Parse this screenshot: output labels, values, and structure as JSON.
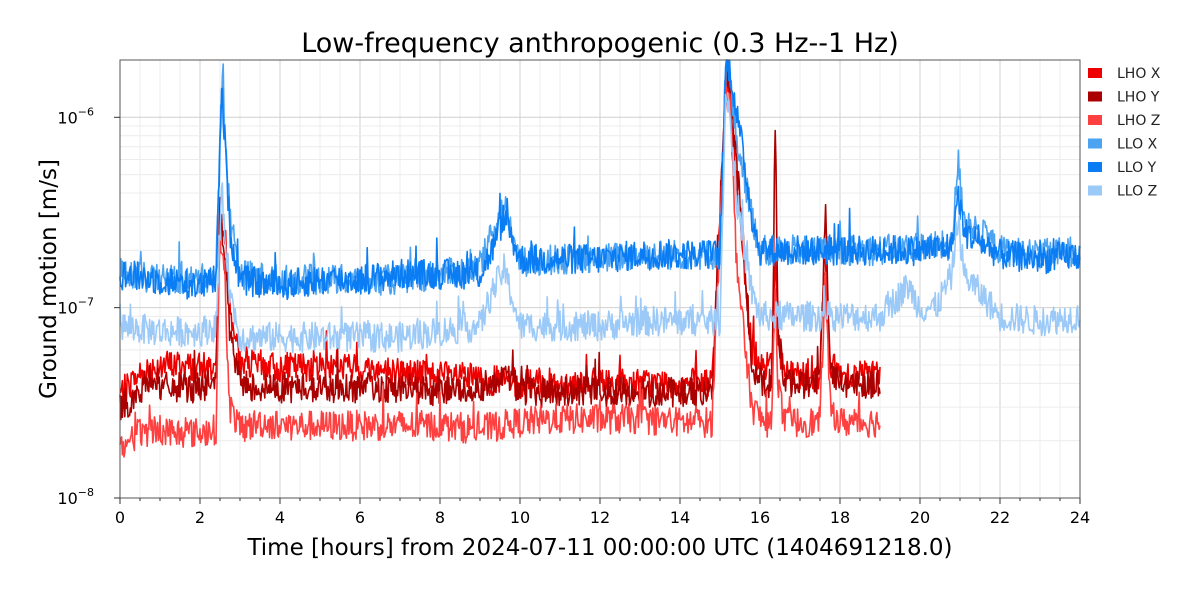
{
  "chart_data": {
    "type": "line",
    "title": "Low-frequency anthropogenic (0.3 Hz--1 Hz)",
    "xlabel": "Time [hours] from 2024-07-11 00:00:00 UTC (1404691218.0)",
    "ylabel": "Ground motion [m/s]",
    "xlim": [
      0,
      24
    ],
    "ylim": [
      1e-08,
      2e-06
    ],
    "yscale": "log",
    "grid": true,
    "legend_position": "outside-top-right",
    "x_ticks": [
      "0",
      "2",
      "4",
      "6",
      "8",
      "10",
      "12",
      "14",
      "16",
      "18",
      "20",
      "22",
      "24"
    ],
    "y_ticks": [
      {
        "base": "10",
        "exp": "−8",
        "value": 1e-08
      },
      {
        "base": "10",
        "exp": "−7",
        "value": 1e-07
      },
      {
        "base": "10",
        "exp": "−6",
        "value": 1e-06
      }
    ],
    "series": [
      {
        "name": "LHO X",
        "color": "#ee0000",
        "x": [
          0,
          0.5,
          1,
          1.5,
          2,
          2.4,
          2.5,
          2.6,
          2.75,
          3,
          3.5,
          4,
          5,
          6,
          7,
          8,
          9,
          10,
          11,
          12,
          13,
          14,
          14.8,
          15.15,
          15.25,
          15.4,
          15.6,
          15.8,
          16.1,
          16.3,
          16.38,
          16.45,
          16.6,
          17,
          17.5,
          17.63,
          17.75,
          18,
          18.5,
          19
        ],
        "y": [
          3.5e-08,
          4.5e-08,
          5e-08,
          5e-08,
          4.8e-08,
          5e-08,
          2.5e-07,
          3e-07,
          1e-07,
          5e-08,
          5e-08,
          4.8e-08,
          5e-08,
          4.8e-08,
          4.6e-08,
          4.4e-08,
          4.2e-08,
          4e-08,
          4e-08,
          4e-08,
          4e-08,
          4e-08,
          4e-08,
          1.5e-06,
          1.2e-06,
          5e-07,
          1.5e-07,
          6e-08,
          5e-08,
          5e-08,
          2e-07,
          7e-08,
          4.5e-08,
          4.5e-08,
          4.5e-08,
          2.2e-07,
          5e-08,
          4.5e-08,
          4.5e-08,
          4.5e-08
        ]
      },
      {
        "name": "LHO Y",
        "color": "#aa0000",
        "x": [
          0,
          0.5,
          0.8,
          1,
          1.5,
          2,
          2.4,
          2.5,
          2.6,
          2.75,
          3,
          3.5,
          4,
          5,
          6,
          7,
          8,
          9,
          9.7,
          10,
          11,
          12,
          13,
          14,
          14.8,
          15.15,
          15.25,
          15.4,
          15.6,
          15.8,
          16.1,
          16.3,
          16.38,
          16.45,
          16.6,
          17,
          17.5,
          17.63,
          17.75,
          18,
          18.5,
          19
        ],
        "y": [
          3e-08,
          3.5e-08,
          4.5e-08,
          3.8e-08,
          3.8e-08,
          3.8e-08,
          4e-08,
          3.5e-07,
          2e-07,
          7e-08,
          4e-08,
          3.8e-08,
          3.8e-08,
          3.8e-08,
          3.8e-08,
          3.8e-08,
          3.6e-08,
          3.8e-08,
          4.5e-08,
          3.6e-08,
          3.6e-08,
          3.6e-08,
          3.6e-08,
          3.6e-08,
          3.6e-08,
          1.8e-06,
          1.5e-06,
          6e-07,
          2e-07,
          5e-08,
          4e-08,
          4e-08,
          1e-06,
          8e-08,
          4e-08,
          4e-08,
          4e-08,
          3.5e-07,
          5e-08,
          4e-08,
          4e-08,
          4e-08
        ]
      },
      {
        "name": "LHO Z",
        "color": "#ff4040",
        "x": [
          0,
          0.5,
          1,
          1.5,
          2,
          2.4,
          2.5,
          2.6,
          2.75,
          3,
          3.5,
          4,
          5,
          6,
          7,
          8,
          9,
          10,
          11,
          12,
          13,
          14,
          14.8,
          15.15,
          15.25,
          15.4,
          15.6,
          15.8,
          16.1,
          16.3,
          16.38,
          16.45,
          16.6,
          17,
          17.5,
          17.63,
          17.75,
          18,
          18.5,
          19
        ],
        "y": [
          1.8e-08,
          2.2e-08,
          2.3e-08,
          2.2e-08,
          2.2e-08,
          2.3e-08,
          2.5e-07,
          1.5e-07,
          3e-08,
          2.3e-08,
          2.5e-08,
          2.4e-08,
          2.4e-08,
          2.4e-08,
          2.4e-08,
          2.4e-08,
          2.3e-08,
          2.5e-08,
          2.6e-08,
          2.6e-08,
          2.6e-08,
          2.5e-08,
          2.5e-08,
          1.5e-06,
          1.2e-06,
          2e-07,
          7e-08,
          3e-08,
          2.5e-08,
          2.5e-08,
          1.5e-07,
          4e-08,
          2.5e-08,
          2.5e-08,
          2.5e-08,
          1.5e-07,
          3e-08,
          2.5e-08,
          2.5e-08,
          2.5e-08
        ]
      },
      {
        "name": "LLO X",
        "color": "#4ba3f2",
        "x": [
          0,
          1,
          2,
          2.4,
          2.55,
          2.75,
          3,
          4,
          5,
          6,
          7,
          8,
          9,
          9.3,
          9.6,
          10,
          11,
          12,
          13,
          14,
          15,
          15.15,
          15.25,
          15.4,
          15.6,
          15.8,
          16,
          17,
          18,
          19,
          20,
          20.8,
          20.95,
          21.1,
          22,
          23,
          24
        ],
        "y": [
          1.5e-07,
          1.4e-07,
          1.4e-07,
          1.5e-07,
          1.6e-06,
          3e-07,
          1.5e-07,
          1.4e-07,
          1.4e-07,
          1.4e-07,
          1.4e-07,
          1.5e-07,
          1.6e-07,
          2.5e-07,
          3.5e-07,
          1.7e-07,
          1.8e-07,
          1.8e-07,
          1.9e-07,
          1.9e-07,
          1.9e-07,
          2e-06,
          1.6e-06,
          8e-07,
          5e-07,
          3e-07,
          2e-07,
          2e-07,
          2e-07,
          2e-07,
          2.1e-07,
          2.1e-07,
          6e-07,
          3e-07,
          2e-07,
          1.9e-07,
          2e-07
        ]
      },
      {
        "name": "LLO Y",
        "color": "#0a7df5",
        "x": [
          0,
          1,
          2,
          2.4,
          2.55,
          2.75,
          3,
          4,
          5,
          6,
          7,
          8,
          9,
          9.3,
          9.6,
          10,
          11,
          12,
          13,
          14,
          15,
          15.15,
          15.25,
          15.4,
          15.6,
          15.8,
          16,
          17,
          18,
          19,
          20,
          20.8,
          20.95,
          21.1,
          22,
          23,
          24
        ],
        "y": [
          1.5e-07,
          1.4e-07,
          1.3e-07,
          1.4e-07,
          1.4e-06,
          2.5e-07,
          1.4e-07,
          1.3e-07,
          1.4e-07,
          1.4e-07,
          1.5e-07,
          1.5e-07,
          1.5e-07,
          2e-07,
          3e-07,
          1.8e-07,
          1.8e-07,
          1.8e-07,
          1.9e-07,
          1.9e-07,
          1.9e-07,
          2e-06,
          1.8e-06,
          1.1e-06,
          6e-07,
          3e-07,
          2e-07,
          2e-07,
          2e-07,
          2e-07,
          2e-07,
          2.1e-07,
          4e-07,
          2.5e-07,
          1.9e-07,
          1.8e-07,
          1.9e-07
        ]
      },
      {
        "name": "LLO Z",
        "color": "#9ccaf8",
        "x": [
          0,
          1,
          2,
          2.4,
          2.55,
          2.75,
          3,
          4,
          5,
          6,
          7,
          8,
          9,
          9.3,
          9.6,
          10,
          11,
          12,
          13,
          14,
          15,
          15.15,
          15.25,
          15.4,
          15.6,
          15.8,
          16,
          17,
          18,
          19,
          19.7,
          20,
          20.4,
          20.8,
          20.95,
          21.1,
          22,
          23,
          24
        ],
        "y": [
          8e-08,
          7.5e-08,
          7.5e-08,
          8e-08,
          4e-07,
          1.2e-07,
          7e-08,
          7e-08,
          7e-08,
          7e-08,
          7e-08,
          7.5e-08,
          8e-08,
          1.2e-07,
          1.6e-07,
          8e-08,
          8e-08,
          8e-08,
          8.5e-08,
          8.5e-08,
          8.5e-08,
          1.5e-06,
          1e-06,
          4e-07,
          2e-07,
          1.2e-07,
          9e-08,
          9e-08,
          9e-08,
          9e-08,
          1.3e-07,
          1e-07,
          1e-07,
          1.5e-07,
          3e-07,
          1.5e-07,
          9e-08,
          8.5e-08,
          9e-08
        ]
      }
    ]
  }
}
